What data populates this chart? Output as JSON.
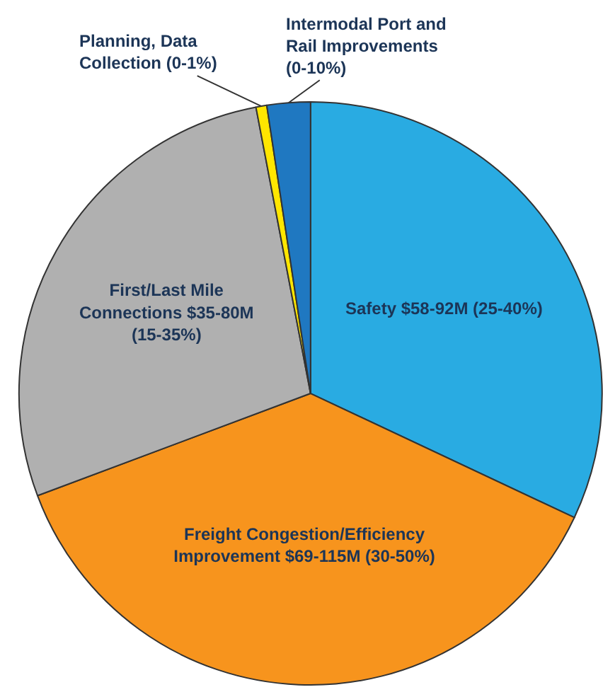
{
  "chart_data": {
    "type": "pie",
    "categories": [
      "Safety $58-92M (25-40%)",
      "Freight Congestion/Efficiency\nImprovement $69-115M (30-50%)",
      "First/Last Mile\nConnections $35-80M\n(15-35%)",
      "Planning, Data\nCollection (0-1%)",
      "Intermodal Port and\nRail Improvements\n(0-10%)"
    ],
    "values": [
      32,
      37.3,
      27.7,
      0.6,
      2.4
    ],
    "colors": [
      "#29abe2",
      "#f7941d",
      "#b0b0b0",
      "#ffe600",
      "#1f78c1"
    ]
  }
}
